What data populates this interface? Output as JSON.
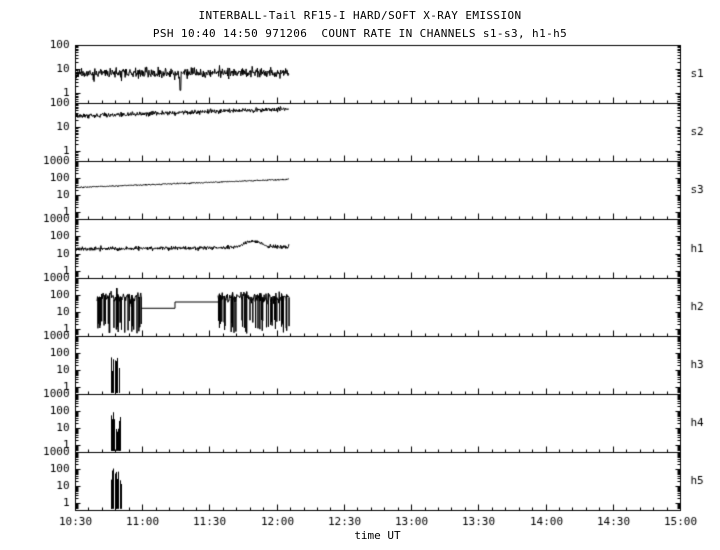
{
  "chart_data": {
    "type": "line",
    "title": "INTERBALL-Tail RF15-I HARD/SOFT X-RAY EMISSION",
    "subtitle": "PSH 10:40 14:50 971206  COUNT RATE IN CHANNELS s1-s3, h1-h5",
    "xlabel": "time UT",
    "fg": "#000000",
    "bg": "#ffffff",
    "x_range": [
      10.5,
      15.0
    ],
    "x_minor_step": 0.1,
    "x_ticks": [
      {
        "t": 10.5,
        "label": "10:30"
      },
      {
        "t": 11.0,
        "label": "11:00"
      },
      {
        "t": 11.5,
        "label": "11:30"
      },
      {
        "t": 12.0,
        "label": "12:00"
      },
      {
        "t": 12.5,
        "label": "12:30"
      },
      {
        "t": 13.0,
        "label": "13:00"
      },
      {
        "t": 13.5,
        "label": "13:30"
      },
      {
        "t": 14.0,
        "label": "14:00"
      },
      {
        "t": 14.5,
        "label": "14:30"
      },
      {
        "t": 15.0,
        "label": "15:00"
      }
    ],
    "panels": [
      {
        "label": "s1",
        "ymin": 0.4,
        "ymax": 100,
        "yticks": [
          {
            "v": 100,
            "label": "100"
          },
          {
            "v": 10,
            "label": "10"
          },
          {
            "v": 1,
            "label": "1"
          }
        ],
        "series": [
          {
            "kind": "noisy",
            "t0": 10.5,
            "t1": 12.09,
            "level0": 7,
            "level1": 7.5,
            "spread": 0.09,
            "spikeProb": 0.012,
            "spikeAmp": 0.22,
            "seed": 11,
            "dips": [
              {
                "t": 11.28,
                "v": 1.4,
                "w": 0.004
              }
            ]
          }
        ]
      },
      {
        "label": "s2",
        "ymin": 0.4,
        "ymax": 100,
        "yticks": [
          {
            "v": 100,
            "label": "100"
          },
          {
            "v": 10,
            "label": "10"
          },
          {
            "v": 1,
            "label": "1"
          }
        ],
        "series": [
          {
            "kind": "noisy",
            "t0": 10.5,
            "t1": 12.09,
            "level0": 30,
            "level1": 60,
            "spread": 0.045,
            "seed": 12
          }
        ]
      },
      {
        "label": "s3",
        "ymin": 0.4,
        "ymax": 1000,
        "yticks": [
          {
            "v": 1000,
            "label": "1000"
          },
          {
            "v": 100,
            "label": "100"
          },
          {
            "v": 10,
            "label": "10"
          },
          {
            "v": 1,
            "label": "1"
          }
        ],
        "series": [
          {
            "kind": "noisy",
            "t0": 10.5,
            "t1": 12.09,
            "level0": 30,
            "level1": 90,
            "spread": 0.018,
            "seed": 13
          }
        ]
      },
      {
        "label": "h1",
        "ymin": 0.4,
        "ymax": 1000,
        "yticks": [
          {
            "v": 1000,
            "label": "1000"
          },
          {
            "v": 100,
            "label": "100"
          },
          {
            "v": 10,
            "label": "10"
          },
          {
            "v": 1,
            "label": "1"
          }
        ],
        "series": [
          {
            "kind": "noisy",
            "t0": 10.5,
            "t1": 12.09,
            "level0": 20,
            "level1": 26,
            "spread": 0.055,
            "seed": 14,
            "bumps": [
              {
                "t": 11.82,
                "amp": 2.2,
                "w": 0.09
              }
            ]
          }
        ]
      },
      {
        "label": "h2",
        "ymin": 0.4,
        "ymax": 1000,
        "yticks": [
          {
            "v": 1000,
            "label": "1000"
          },
          {
            "v": 100,
            "label": "100"
          },
          {
            "v": 10,
            "label": "10"
          },
          {
            "v": 1,
            "label": "1"
          }
        ],
        "series": [
          {
            "kind": "burst",
            "t0": 10.66,
            "t1": 10.99,
            "top": 80,
            "spread": 0.16,
            "dropout": 0.28,
            "floor": 0.6,
            "floorSpread": 0.8,
            "seed": 15
          },
          {
            "kind": "steps",
            "points": [
              [
                10.99,
                18
              ],
              [
                11.24,
                18
              ],
              [
                11.24,
                42
              ],
              [
                11.56,
                42
              ]
            ]
          },
          {
            "kind": "burst",
            "t0": 11.56,
            "t1": 12.09,
            "top": 80,
            "spread": 0.16,
            "dropout": 0.3,
            "floor": 0.6,
            "floorSpread": 0.8,
            "seed": 16
          }
        ]
      },
      {
        "label": "h3",
        "ymin": 0.4,
        "ymax": 1000,
        "yticks": [
          {
            "v": 1000,
            "label": "1000"
          },
          {
            "v": 100,
            "label": "100"
          },
          {
            "v": 10,
            "label": "10"
          },
          {
            "v": 1,
            "label": "1"
          }
        ],
        "series": [
          {
            "kind": "spikes",
            "t0": 10.76,
            "t1": 10.84,
            "n": 16,
            "peakMin": 5,
            "peakMax": 130,
            "floor": 0.5,
            "seed": 17
          }
        ]
      },
      {
        "label": "h4",
        "ymin": 0.4,
        "ymax": 1000,
        "yticks": [
          {
            "v": 1000,
            "label": "1000"
          },
          {
            "v": 100,
            "label": "100"
          },
          {
            "v": 10,
            "label": "10"
          },
          {
            "v": 1,
            "label": "1"
          }
        ],
        "series": [
          {
            "kind": "spikes",
            "t0": 10.76,
            "t1": 10.84,
            "n": 16,
            "peakMin": 5,
            "peakMax": 130,
            "floor": 0.5,
            "seed": 18
          }
        ]
      },
      {
        "label": "h5",
        "ymin": 0.4,
        "ymax": 1000,
        "yticks": [
          {
            "v": 1000,
            "label": "1000"
          },
          {
            "v": 100,
            "label": "100"
          },
          {
            "v": 10,
            "label": "10"
          },
          {
            "v": 1,
            "label": "1"
          }
        ],
        "series": [
          {
            "kind": "spikes",
            "t0": 10.76,
            "t1": 10.84,
            "n": 16,
            "peakMin": 5,
            "peakMax": 130,
            "floor": 0.5,
            "seed": 19
          }
        ]
      }
    ]
  }
}
